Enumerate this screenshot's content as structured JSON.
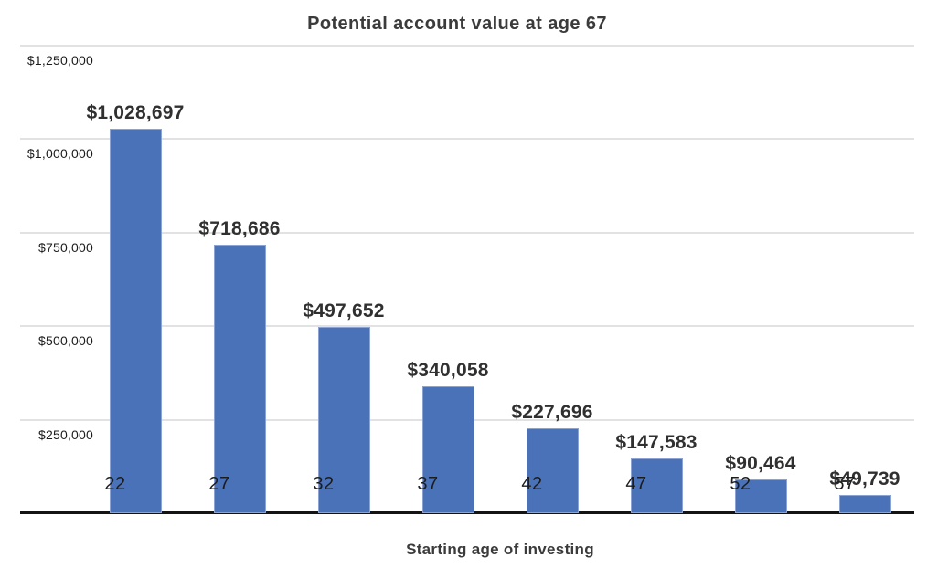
{
  "chart_data": {
    "type": "bar",
    "title": "Potential account value at age 67",
    "xlabel": "Starting age of investing",
    "ylabel": "",
    "categories": [
      "22",
      "27",
      "32",
      "37",
      "42",
      "47",
      "52",
      "57"
    ],
    "values": [
      1028697,
      718686,
      497652,
      340058,
      227696,
      147583,
      90464,
      49739
    ],
    "value_labels": [
      "$1,028,697",
      "$718,686",
      "$497,652",
      "$340,058",
      "$227,696",
      "$147,583",
      "$90,464",
      "$49,739"
    ],
    "y_ticks": [
      {
        "value": 1250000,
        "label": "$1,250,000"
      },
      {
        "value": 1000000,
        "label": "$1,000,000"
      },
      {
        "value": 750000,
        "label": "$750,000"
      },
      {
        "value": 500000,
        "label": "$500,000"
      },
      {
        "value": 250000,
        "label": "$250,000"
      }
    ],
    "ylim": [
      0,
      1250000
    ],
    "grid": true,
    "legend": "none",
    "colors": {
      "bar_fill": "#4A72B8",
      "bar_border": "#8CA3D6",
      "gridline": "#E2E2E2",
      "axis_line": "#141414",
      "title_text": "#3B3B3B",
      "value_label_text": "#303030",
      "tick_text": "#1C1C1C",
      "background": "#FFFFFF"
    }
  }
}
